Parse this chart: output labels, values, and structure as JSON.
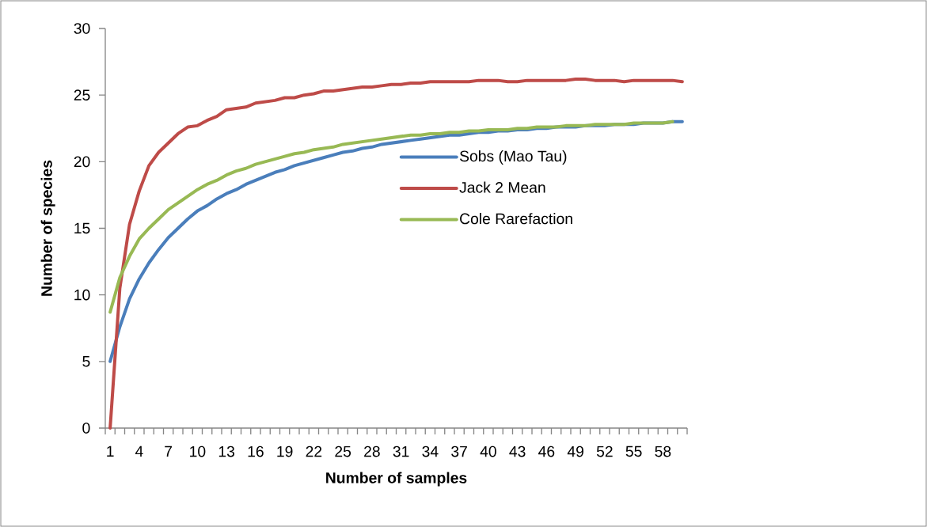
{
  "chart_data": {
    "type": "line",
    "xlabel": "Number of samples",
    "ylabel": "Number of species",
    "categories": [
      "1",
      null,
      null,
      "4",
      null,
      null,
      "7",
      null,
      null,
      "10",
      null,
      null,
      "13",
      null,
      null,
      "16",
      null,
      null,
      "19",
      null,
      null,
      "22",
      null,
      null,
      "25",
      null,
      null,
      "28",
      null,
      null,
      "31",
      null,
      null,
      "34",
      null,
      null,
      "37",
      null,
      null,
      "40",
      null,
      null,
      "43",
      null,
      null,
      "46",
      null,
      null,
      "49",
      null,
      null,
      "52",
      null,
      null,
      "55",
      null,
      null,
      "58",
      null,
      null
    ],
    "ylim": [
      0,
      30
    ],
    "yticks": [
      0,
      5,
      10,
      15,
      20,
      25,
      30
    ],
    "legend": "right",
    "series": [
      {
        "name": "Sobs (Mao Tau)",
        "color": "#4a7ebb",
        "values": [
          5.0,
          7.6,
          9.7,
          11.2,
          12.4,
          13.4,
          14.3,
          15.0,
          15.7,
          16.3,
          16.7,
          17.2,
          17.6,
          17.9,
          18.3,
          18.6,
          18.9,
          19.2,
          19.4,
          19.7,
          19.9,
          20.1,
          20.3,
          20.5,
          20.7,
          20.8,
          21.0,
          21.1,
          21.3,
          21.4,
          21.5,
          21.6,
          21.7,
          21.8,
          21.9,
          22.0,
          22.0,
          22.1,
          22.2,
          22.2,
          22.3,
          22.3,
          22.4,
          22.4,
          22.5,
          22.5,
          22.6,
          22.6,
          22.6,
          22.7,
          22.7,
          22.7,
          22.8,
          22.8,
          22.8,
          22.9,
          22.9,
          22.9,
          23.0,
          23.0
        ]
      },
      {
        "name": "Jack 2 Mean",
        "color": "#be4b48",
        "values": [
          0.0,
          10.5,
          15.3,
          17.8,
          19.7,
          20.7,
          21.4,
          22.1,
          22.6,
          22.7,
          23.1,
          23.4,
          23.9,
          24.0,
          24.1,
          24.4,
          24.5,
          24.6,
          24.8,
          24.8,
          25.0,
          25.1,
          25.3,
          25.3,
          25.4,
          25.5,
          25.6,
          25.6,
          25.7,
          25.8,
          25.8,
          25.9,
          25.9,
          26.0,
          26.0,
          26.0,
          26.0,
          26.0,
          26.1,
          26.1,
          26.1,
          26.0,
          26.0,
          26.1,
          26.1,
          26.1,
          26.1,
          26.1,
          26.2,
          26.2,
          26.1,
          26.1,
          26.1,
          26.0,
          26.1,
          26.1,
          26.1,
          26.1,
          26.1,
          26.0
        ]
      },
      {
        "name": "Cole Rarefaction",
        "color": "#98b954",
        "values": [
          8.7,
          11.3,
          12.9,
          14.2,
          15.0,
          15.7,
          16.4,
          16.9,
          17.4,
          17.9,
          18.3,
          18.6,
          19.0,
          19.3,
          19.5,
          19.8,
          20.0,
          20.2,
          20.4,
          20.6,
          20.7,
          20.9,
          21.0,
          21.1,
          21.3,
          21.4,
          21.5,
          21.6,
          21.7,
          21.8,
          21.9,
          22.0,
          22.0,
          22.1,
          22.1,
          22.2,
          22.2,
          22.3,
          22.3,
          22.4,
          22.4,
          22.4,
          22.5,
          22.5,
          22.6,
          22.6,
          22.6,
          22.7,
          22.7,
          22.7,
          22.8,
          22.8,
          22.8,
          22.8,
          22.9,
          22.9,
          22.9,
          22.9,
          23.0,
          null
        ]
      }
    ]
  }
}
